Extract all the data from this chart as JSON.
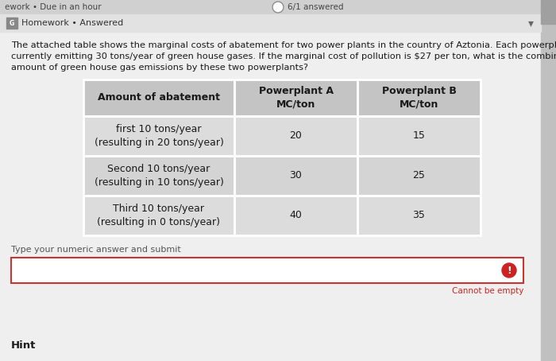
{
  "bg_color": "#e8e8e8",
  "top_bar_color": "#d0d0d0",
  "content_bg": "#efefef",
  "header_bar_color": "#e2e2e2",
  "top_bar_text": "ework • Due in an hour",
  "answered_text": "6/1 answered",
  "header_text": "Homework • Answered",
  "body_text_line1": "The attached table shows the marginal costs of abatement for two power plants in the country of Aztonia. Each powerplant is",
  "body_text_line2": "currently emitting 30 tons/year of green house gases. If the marginal cost of pollution is $27 per ton, what is the combined optimal",
  "body_text_line3": "amount of green house gas emissions by these two powerplants?",
  "table_header": [
    "Amount of abatement",
    "Powerplant A\nMC/ton",
    "Powerplant B\nMC/ton"
  ],
  "table_rows": [
    [
      "first 10 tons/year\n(resulting in 20 tons/year)",
      "20",
      "15"
    ],
    [
      "Second 10 tons/year\n(resulting in 10 tons/year)",
      "30",
      "25"
    ],
    [
      "Third 10 tons/year\n(resulting in 0 tons/year)",
      "40",
      "35"
    ]
  ],
  "input_label": "Type your numeric answer and submit",
  "error_text": "Cannot be empty",
  "hint_text": "Hint",
  "header_col_color": "#c4c4c4",
  "row_color_1": "#d4d4d4",
  "row_color_2": "#dcdcdc",
  "table_border_color": "#ffffff",
  "input_border_color": "#cc3333",
  "error_icon_color": "#cc2222",
  "error_text_color": "#cc2222",
  "text_color": "#1a1a1a",
  "scrollbar_color": "#c0c0c0",
  "scrollbar_thumb": "#a0a0a0"
}
